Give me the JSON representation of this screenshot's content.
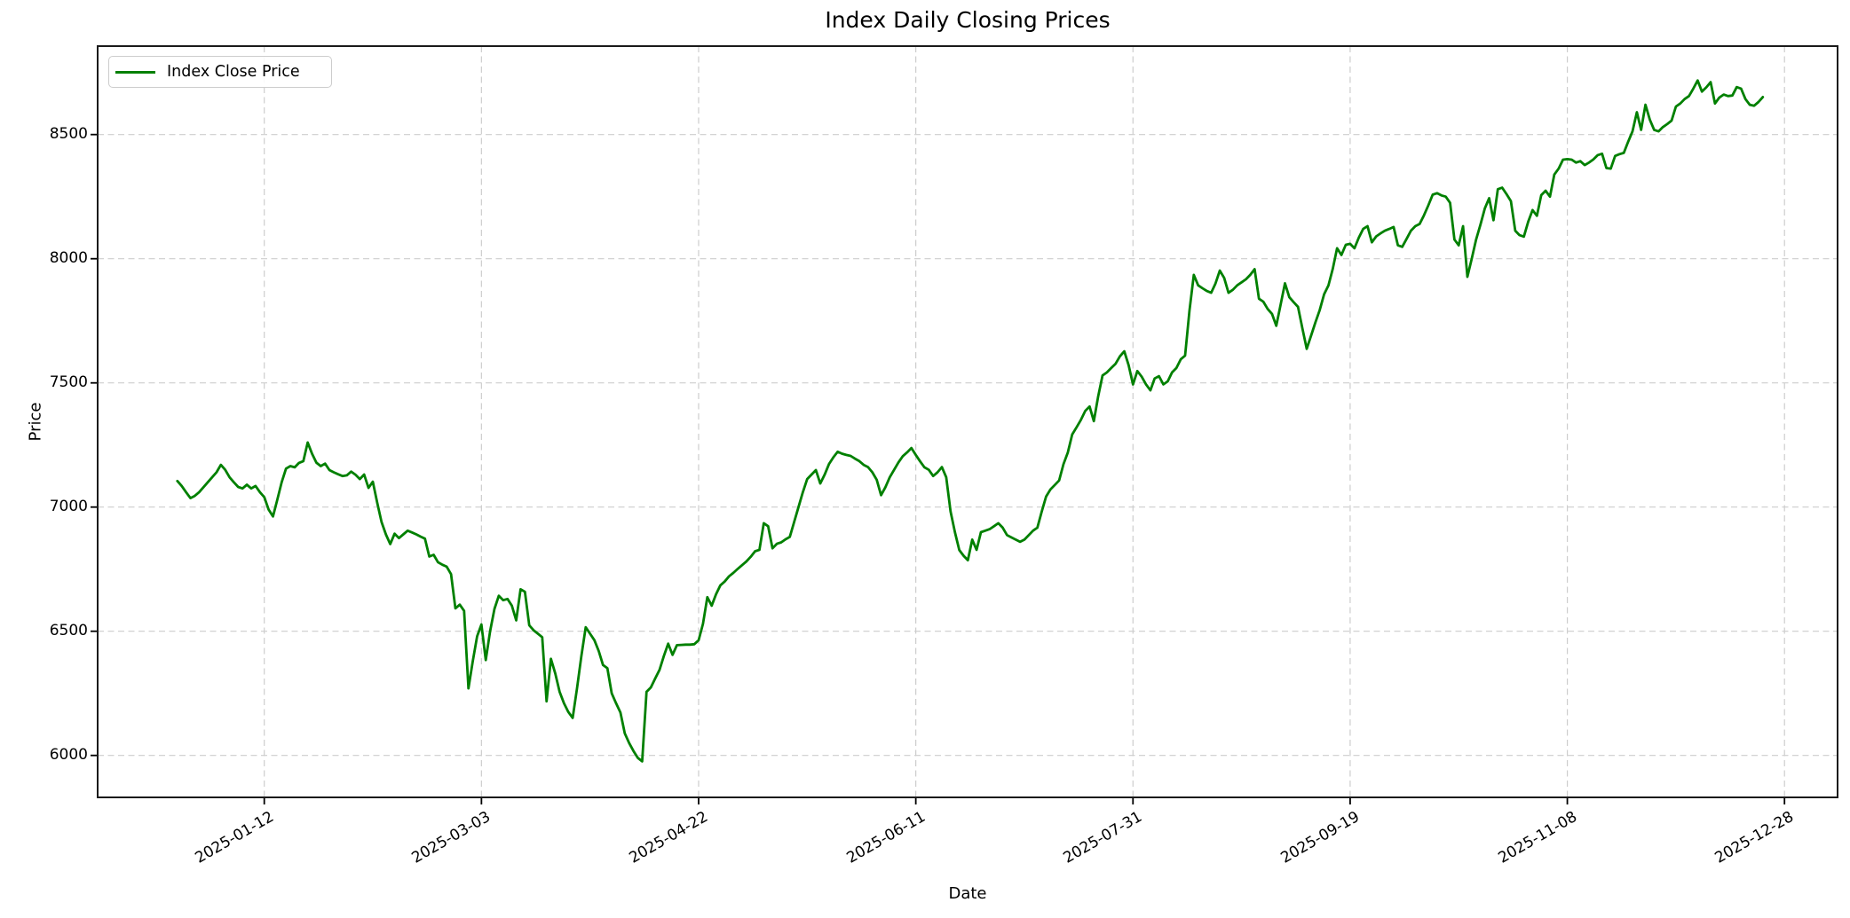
{
  "title": "Index Daily Closing Prices",
  "legend": {
    "label": "Index Close Price"
  },
  "chart_data": {
    "type": "line",
    "title": "Index Daily Closing Prices",
    "xlabel": "Date",
    "ylabel": "Price",
    "grid": true,
    "legend_position": "upper left",
    "line_color": "#008000",
    "grid_color": "#cdcdcd",
    "x_ticks": [
      "2025-01-12",
      "2025-03-03",
      "2025-04-22",
      "2025-06-11",
      "2025-07-31",
      "2025-09-19",
      "2025-11-08",
      "2025-12-28"
    ],
    "y_ticks": [
      6000,
      6500,
      7000,
      7500,
      8000,
      8500
    ],
    "ylim": [
      5834,
      8878
    ],
    "series": [
      {
        "name": "Index Close Price",
        "color": "#008000",
        "frequency": "daily",
        "start_date": "2024-12-23",
        "end_date": "2025-12-23",
        "values": [
          7105,
          7085,
          7060,
          7036,
          7045,
          7060,
          7080,
          7100,
          7120,
          7140,
          7170,
          7150,
          7120,
          7100,
          7081,
          7075,
          7090,
          7075,
          7085,
          7060,
          7040,
          6990,
          6962,
          7030,
          7100,
          7155,
          7165,
          7160,
          7178,
          7185,
          7260,
          7215,
          7179,
          7165,
          7175,
          7149,
          7140,
          7132,
          7125,
          7128,
          7143,
          7130,
          7113,
          7131,
          7077,
          7102,
          7018,
          6940,
          6890,
          6851,
          6893,
          6875,
          6890,
          6905,
          6898,
          6890,
          6881,
          6873,
          6801,
          6808,
          6778,
          6768,
          6760,
          6730,
          6592,
          6607,
          6582,
          6270,
          6380,
          6480,
          6527,
          6384,
          6500,
          6590,
          6643,
          6625,
          6630,
          6603,
          6544,
          6669,
          6659,
          6524,
          6504,
          6490,
          6476,
          6218,
          6389,
          6330,
          6256,
          6210,
          6175,
          6151,
          6270,
          6400,
          6516,
          6490,
          6464,
          6420,
          6364,
          6351,
          6250,
          6210,
          6173,
          6089,
          6050,
          6018,
          5990,
          5976,
          6256,
          6274,
          6310,
          6345,
          6400,
          6450,
          6405,
          6444,
          6445,
          6446,
          6446,
          6448,
          6464,
          6530,
          6637,
          6603,
          6649,
          6685,
          6700,
          6721,
          6735,
          6751,
          6766,
          6781,
          6800,
          6822,
          6828,
          6935,
          6923,
          6834,
          6852,
          6858,
          6870,
          6880,
          6940,
          7000,
          7060,
          7113,
          7131,
          7149,
          7095,
          7130,
          7173,
          7200,
          7223,
          7215,
          7210,
          7206,
          7195,
          7185,
          7170,
          7161,
          7140,
          7110,
          7048,
          7080,
          7120,
          7150,
          7180,
          7205,
          7220,
          7238,
          7210,
          7184,
          7160,
          7150,
          7125,
          7140,
          7161,
          7120,
          6982,
          6899,
          6827,
          6804,
          6786,
          6869,
          6828,
          6899,
          6905,
          6911,
          6923,
          6935,
          6917,
          6887,
          6878,
          6869,
          6860,
          6869,
          6887,
          6905,
          6917,
          6982,
          7042,
          7071,
          7089,
          7107,
          7173,
          7220,
          7292,
          7321,
          7351,
          7387,
          7405,
          7346,
          7446,
          7530,
          7542,
          7560,
          7577,
          7607,
          7627,
          7571,
          7494,
          7548,
          7525,
          7494,
          7470,
          7518,
          7527,
          7494,
          7506,
          7542,
          7560,
          7595,
          7610,
          7790,
          7935,
          7893,
          7881,
          7870,
          7863,
          7900,
          7952,
          7923,
          7863,
          7875,
          7893,
          7905,
          7917,
          7935,
          7958,
          7839,
          7827,
          7798,
          7778,
          7730,
          7815,
          7901,
          7845,
          7825,
          7806,
          7720,
          7637,
          7690,
          7744,
          7794,
          7857,
          7893,
          7960,
          8042,
          8015,
          8056,
          8060,
          8042,
          8085,
          8120,
          8131,
          8066,
          8090,
          8102,
          8113,
          8120,
          8128,
          8054,
          8048,
          8080,
          8113,
          8131,
          8140,
          8175,
          8215,
          8258,
          8264,
          8255,
          8250,
          8225,
          8077,
          8054,
          8131,
          7927,
          8000,
          8077,
          8137,
          8202,
          8244,
          8155,
          8280,
          8286,
          8260,
          8232,
          8113,
          8095,
          8089,
          8149,
          8196,
          8173,
          8256,
          8274,
          8250,
          8339,
          8363,
          8399,
          8401,
          8399,
          8387,
          8393,
          8377,
          8387,
          8400,
          8417,
          8423,
          8365,
          8363,
          8414,
          8421,
          8426,
          8471,
          8513,
          8590,
          8519,
          8620,
          8560,
          8519,
          8513,
          8530,
          8542,
          8556,
          8613,
          8625,
          8643,
          8655,
          8685,
          8718,
          8673,
          8690,
          8711,
          8625,
          8649,
          8661,
          8655,
          8657,
          8691,
          8685,
          8643,
          8620,
          8616,
          8631,
          8651
        ]
      }
    ]
  }
}
